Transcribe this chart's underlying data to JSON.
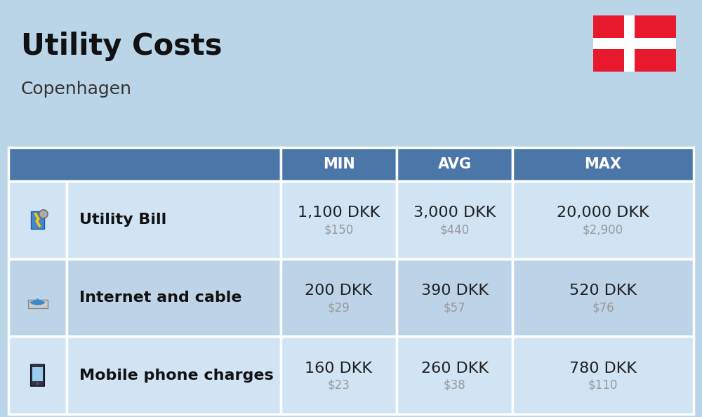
{
  "title": "Utility Costs",
  "subtitle": "Copenhagen",
  "background_color": "#bad4e8",
  "header_bg_color": "#4a76a8",
  "header_text_color": "#ffffff",
  "row_bg_color_1": "#d0e4f4",
  "row_bg_color_2": "#bdd4e8",
  "table_border_color": "#ffffff",
  "col_headers": [
    "MIN",
    "AVG",
    "MAX"
  ],
  "rows": [
    {
      "label": "Utility Bill",
      "min_dkk": "1,100 DKK",
      "min_usd": "$150",
      "avg_dkk": "3,000 DKK",
      "avg_usd": "$440",
      "max_dkk": "20,000 DKK",
      "max_usd": "$2,900"
    },
    {
      "label": "Internet and cable",
      "min_dkk": "200 DKK",
      "min_usd": "$29",
      "avg_dkk": "390 DKK",
      "avg_usd": "$57",
      "max_dkk": "520 DKK",
      "max_usd": "$76"
    },
    {
      "label": "Mobile phone charges",
      "min_dkk": "160 DKK",
      "min_usd": "$23",
      "avg_dkk": "260 DKK",
      "avg_usd": "$38",
      "max_dkk": "780 DKK",
      "max_usd": "$110"
    }
  ],
  "flag_red": "#e8192c",
  "flag_white": "#ffffff",
  "dkk_fontsize": 16,
  "usd_fontsize": 12,
  "label_fontsize": 16,
  "header_fontsize": 15,
  "title_fontsize": 30,
  "subtitle_fontsize": 18,
  "title_color": "#111111",
  "subtitle_color": "#333333",
  "usd_color": "#999999",
  "dkk_color": "#222222",
  "label_color": "#111111"
}
